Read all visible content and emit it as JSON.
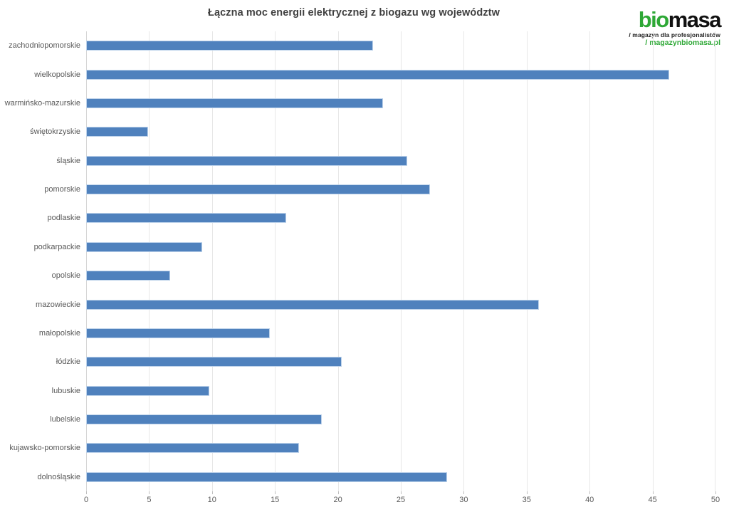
{
  "title": "Łączna moc energii elektrycznej z biogazu wg województw",
  "logo": {
    "word_green": "bio",
    "word_black": "masa",
    "tagline": "/ magazyn dla profesjonalistów",
    "site": "/ magazynbiomasa.pl",
    "green_color": "#2ea836",
    "black_color": "#111111"
  },
  "chart_data": {
    "type": "bar",
    "orientation": "horizontal",
    "title": "Łączna moc energii elektrycznej z biogazu wg województw",
    "categories": [
      "zachodniopomorskie",
      "wielkopolskie",
      "warmińsko-mazurskie",
      "świętokrzyskie",
      "śląskie",
      "pomorskie",
      "podlaskie",
      "podkarpackie",
      "opolskie",
      "mazowieckie",
      "małopolskie",
      "łódzkie",
      "lubuskie",
      "lubelskie",
      "kujawsko-pomorskie",
      "dolnośląskie"
    ],
    "values": [
      22.8,
      46.3,
      23.6,
      4.9,
      25.5,
      27.3,
      15.9,
      9.2,
      6.7,
      36.0,
      14.6,
      20.3,
      9.8,
      18.7,
      16.9,
      28.7
    ],
    "xlabel": "",
    "ylabel": "",
    "xlim": [
      0,
      50
    ],
    "xticks": [
      0,
      5,
      10,
      15,
      20,
      25,
      30,
      35,
      40,
      45,
      50
    ],
    "grid": true,
    "legend": false,
    "bar_color": "#4f81bd",
    "bar_border_color": "#bdd2ea"
  }
}
